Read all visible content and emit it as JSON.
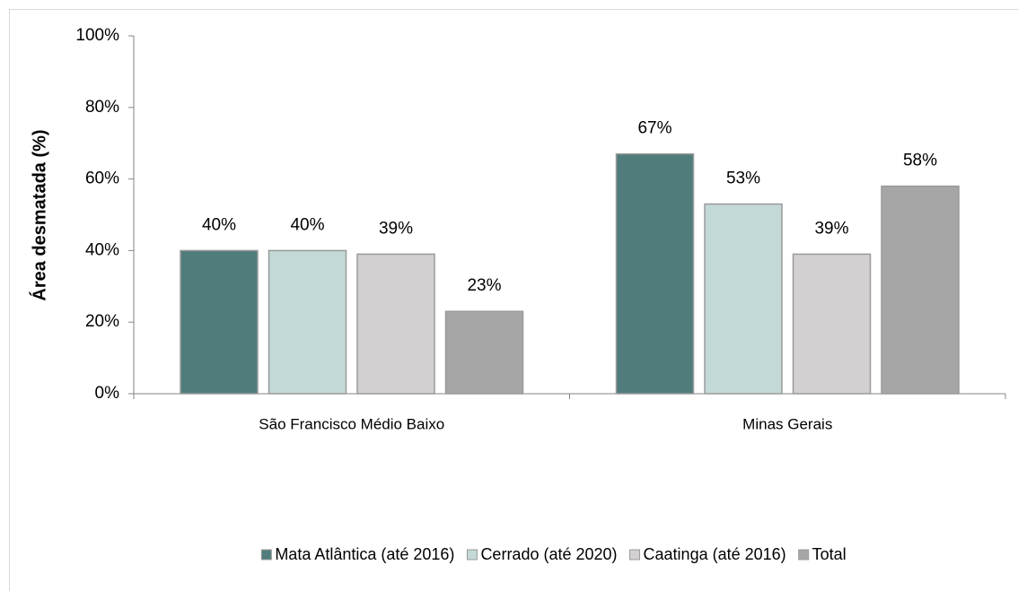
{
  "chart_data": {
    "type": "bar",
    "y_label": "Área desmatada (%)",
    "categories": [
      "São Francisco Médio Baixo",
      "Minas Gerais"
    ],
    "series": [
      {
        "name": "Mata Atlântica (até 2016)",
        "color": "#507c7c",
        "values": [
          40,
          67
        ],
        "value_labels": [
          "40%",
          "67%"
        ]
      },
      {
        "name": "Cerrado (até 2020)",
        "color": "#c3d9d8",
        "values": [
          40,
          53
        ],
        "value_labels": [
          "40%",
          "53%"
        ]
      },
      {
        "name": "Caatinga (até 2016)",
        "color": "#d2d0d1",
        "values": [
          39,
          39
        ],
        "value_labels": [
          "39%",
          "39%"
        ]
      },
      {
        "name": "Total",
        "color": "#a6a6a6",
        "values": [
          23,
          58
        ],
        "value_labels": [
          "23%",
          "58%"
        ]
      }
    ],
    "ylim": [
      0,
      100
    ],
    "yticks": [
      {
        "value": 0,
        "label": "0%"
      },
      {
        "value": 20,
        "label": "20%"
      },
      {
        "value": 40,
        "label": "40%"
      },
      {
        "value": 60,
        "label": "60%"
      },
      {
        "value": 80,
        "label": "80%"
      },
      {
        "value": 100,
        "label": "100%"
      }
    ],
    "legend": "bottom"
  }
}
